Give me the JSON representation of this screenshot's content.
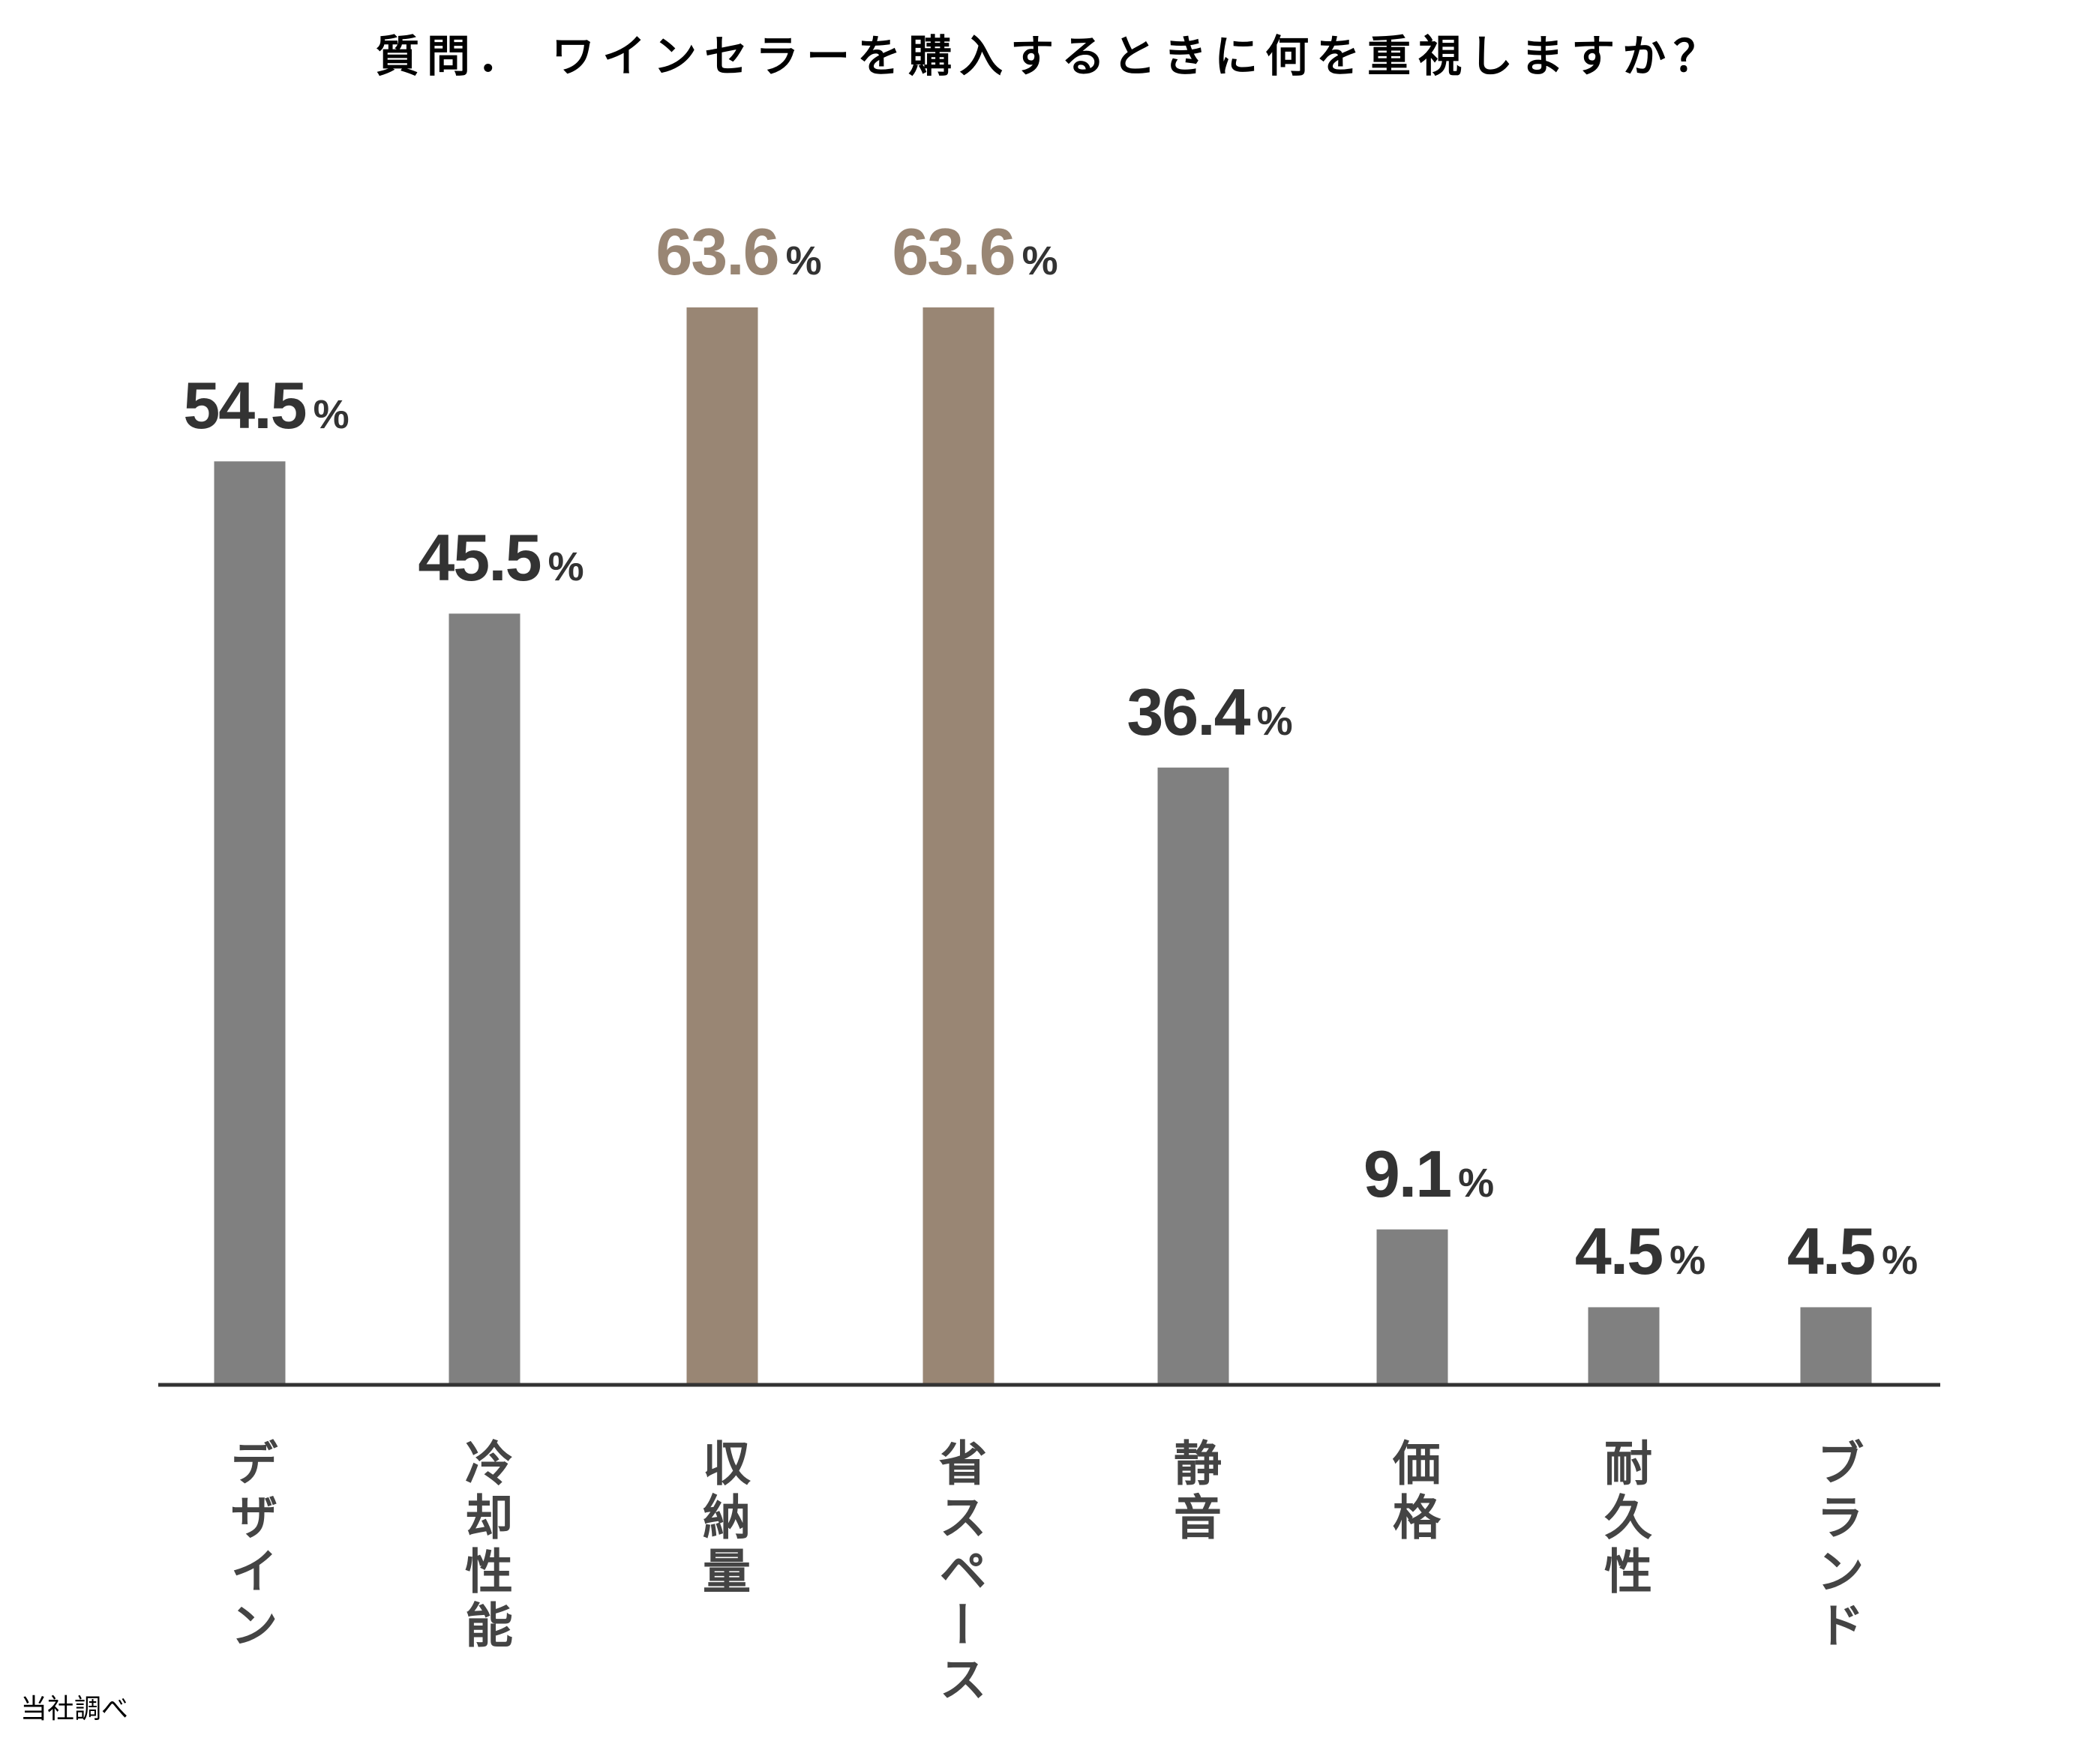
{
  "chart_data": {
    "type": "bar",
    "title": "質問． ワインセラーを購入するときに何を重視しますか？",
    "categories": [
      "デザイン",
      "冷却性能",
      "収納量",
      "省スペース",
      "静音",
      "価格",
      "耐久性",
      "ブランド"
    ],
    "values": [
      54.5,
      45.5,
      63.6,
      63.6,
      36.4,
      9.1,
      4.5,
      4.5
    ],
    "value_labels": [
      "54.5",
      "45.5",
      "63.6",
      "63.6",
      "36.4",
      "9.1",
      "4.5",
      "4.5"
    ],
    "unit": "%",
    "highlight": [
      false,
      false,
      true,
      true,
      false,
      false,
      false,
      false
    ],
    "xlabel": "",
    "ylabel": "",
    "ylim": [
      0,
      63.6
    ],
    "grid": false
  },
  "colors": {
    "bar": "#808080",
    "highlight": "#998674",
    "label": "#333333",
    "axis": "#333333"
  },
  "footer": "当社調べ"
}
